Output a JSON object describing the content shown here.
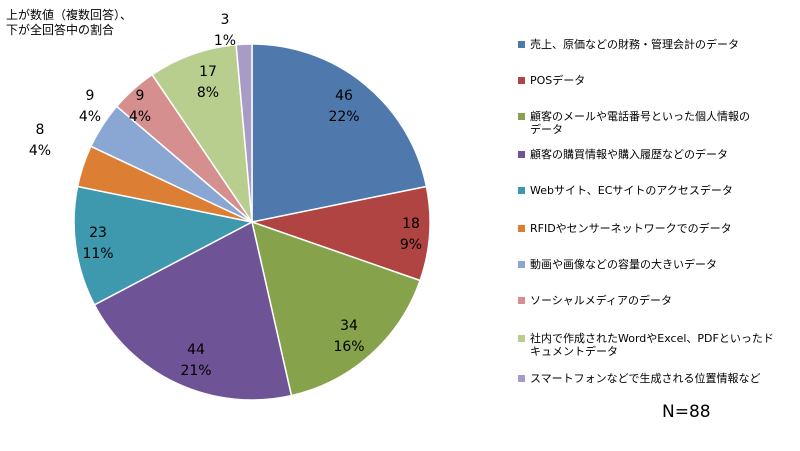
{
  "note": "上が数値（複数回答）、\n下が全回答中の割合",
  "n_label": "N=88",
  "chart_data": {
    "type": "pie",
    "title": "",
    "categories": [
      "売上、原価などの財務・管理会計のデータ",
      "POSデータ",
      "顧客のメールや電話番号といった個人情報のデータ",
      "顧客の購買情報や購入履歴などのデータ",
      "Webサイト、ECサイトのアクセスデータ",
      "RFIDやセンサーネットワークでのデータ",
      "動画や画像などの容量の大きいデータ",
      "ソーシャルメディアのデータ",
      "社内で作成されたWordやExcel、PDFといったドキュメントデータ",
      "スマートフォンなどで生成される位置情報など"
    ],
    "values": [
      46,
      18,
      34,
      44,
      23,
      8,
      9,
      9,
      17,
      3
    ],
    "percent_labels": [
      "22%",
      "9%",
      "16%",
      "21%",
      "11%",
      "4%",
      "4%",
      "4%",
      "8%",
      "1%"
    ],
    "colors": [
      "#4f79ad",
      "#b04442",
      "#86a24a",
      "#6e5496",
      "#3e98ae",
      "#dc7f35",
      "#8aa6d3",
      "#d48f8e",
      "#b8ce8e",
      "#a89bc5"
    ],
    "legend": "right"
  },
  "legend_labels": [
    "売上、原価などの財務・管理会計のデータ",
    "POSデータ",
    "顧客のメールや電話番号といった個人情報の\nデータ",
    "顧客の購買情報や購入履歴などのデータ",
    "Webサイト、ECサイトのアクセスデータ",
    "RFIDやセンサーネットワークでのデータ",
    "動画や画像などの容量の大きいデータ",
    "ソーシャルメディアのデータ",
    "社内で作成されたWordやExcel、PDFといったド\nキュメントデータ",
    "スマートフォンなどで生成される位置情報など"
  ]
}
